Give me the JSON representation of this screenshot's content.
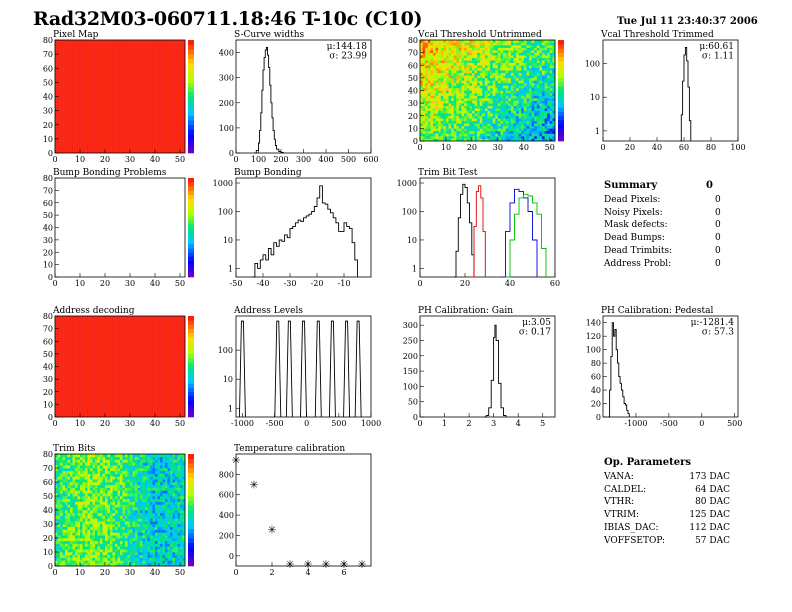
{
  "header": {
    "title": "Rad32M03-060711.18:46 T-10c (C10)",
    "datetime": "Tue Jul 11 23:40:37 2006"
  },
  "panels": [
    {
      "id": "pixel-map",
      "title": "Pixel Map"
    },
    {
      "id": "scurve-widths",
      "title": "S-Curve widths",
      "stats": [
        "μ:144.18",
        "σ: 23.99"
      ]
    },
    {
      "id": "vcal-untrimmed",
      "title": "Vcal Threshold Untrimmed"
    },
    {
      "id": "vcal-trimmed",
      "title": "Vcal Threshold Trimmed",
      "stats": [
        "μ:60.61",
        "σ: 1.11"
      ]
    },
    {
      "id": "bump-problems",
      "title": "Bump Bonding Problems"
    },
    {
      "id": "bump-bonding",
      "title": "Bump Bonding"
    },
    {
      "id": "trim-bit-test",
      "title": "Trim Bit Test"
    },
    {
      "id": "address-decoding",
      "title": "Address decoding"
    },
    {
      "id": "address-levels",
      "title": "Address Levels"
    },
    {
      "id": "ph-gain",
      "title": "PH Calibration: Gain",
      "stats": [
        "μ:3.05",
        "σ: 0.17"
      ]
    },
    {
      "id": "ph-pedestal",
      "title": "PH Calibration: Pedestal",
      "stats": [
        "μ:-1281.4",
        "σ: 57.3"
      ]
    },
    {
      "id": "trim-bits",
      "title": "Trim Bits"
    },
    {
      "id": "temp-calib",
      "title": "Temperature calibration"
    }
  ],
  "summary": {
    "title": "Summary",
    "total": "0",
    "rows": [
      {
        "label": "Dead Pixels:",
        "value": "0"
      },
      {
        "label": "Noisy Pixels:",
        "value": "0"
      },
      {
        "label": "Mask defects:",
        "value": "0"
      },
      {
        "label": "Dead Bumps:",
        "value": "0"
      },
      {
        "label": "Dead Trimbits:",
        "value": "0"
      },
      {
        "label": "Address Probl:",
        "value": "0"
      }
    ]
  },
  "op_params": {
    "title": "Op. Parameters",
    "rows": [
      {
        "label": "VANA:",
        "value": "173 DAC"
      },
      {
        "label": "CALDEL:",
        "value": "64 DAC"
      },
      {
        "label": "VTHR:",
        "value": "80 DAC"
      },
      {
        "label": "VTRIM:",
        "value": "125 DAC"
      },
      {
        "label": "IBIAS_DAC:",
        "value": "112 DAC"
      },
      {
        "label": "VOFFSETOP:",
        "value": "57 DAC"
      }
    ]
  },
  "colors": {
    "hot": "#ff2a14",
    "line": "#000000",
    "trim_black": "#000000",
    "trim_red": "#e00000",
    "trim_blue": "#0000dd",
    "trim_green": "#00c000"
  },
  "chart_data": [
    {
      "id": "pixel-map",
      "type": "heatmap",
      "xlim": [
        0,
        52
      ],
      "ylim": [
        0,
        80
      ],
      "xticks": [
        0,
        10,
        20,
        30,
        40,
        50
      ],
      "yticks": [
        0,
        10,
        20,
        30,
        40,
        50,
        60,
        70,
        80
      ],
      "fill": "uniform-max"
    },
    {
      "id": "scurve-widths",
      "type": "line",
      "xlim": [
        0,
        600
      ],
      "ylim": [
        0,
        450
      ],
      "xticks": [
        0,
        100,
        200,
        300,
        400,
        500,
        600
      ],
      "yticks": [
        0,
        100,
        200,
        300,
        400
      ],
      "x": [
        80,
        90,
        100,
        105,
        110,
        115,
        120,
        125,
        130,
        135,
        140,
        145,
        150,
        155,
        160,
        165,
        170,
        175,
        180,
        190,
        200,
        210
      ],
      "y": [
        0,
        10,
        40,
        90,
        160,
        250,
        330,
        380,
        410,
        420,
        390,
        340,
        270,
        200,
        140,
        90,
        55,
        30,
        15,
        6,
        2,
        0
      ]
    },
    {
      "id": "vcal-untrimmed",
      "type": "heatmap",
      "xlim": [
        0,
        52
      ],
      "ylim": [
        0,
        80
      ],
      "xticks": [
        0,
        10,
        20,
        30,
        40,
        50
      ],
      "yticks": [
        0,
        10,
        20,
        30,
        40,
        50,
        60,
        70,
        80
      ],
      "fill": "noisy-gradient"
    },
    {
      "id": "vcal-trimmed",
      "type": "line",
      "xlim": [
        0,
        100
      ],
      "log": true,
      "ylim": [
        0.5,
        500
      ],
      "xticks": [
        0,
        20,
        40,
        60,
        80,
        100
      ],
      "yticks": [
        1,
        10,
        100
      ],
      "x": [
        57,
        58,
        59,
        60,
        61,
        62,
        63,
        64,
        65
      ],
      "y": [
        0.5,
        3,
        30,
        180,
        300,
        120,
        20,
        2,
        0.5
      ]
    },
    {
      "id": "bump-problems",
      "type": "heatmap",
      "xlim": [
        0,
        52
      ],
      "ylim": [
        0,
        80
      ],
      "xticks": [
        0,
        10,
        20,
        30,
        40,
        50
      ],
      "yticks": [
        0,
        10,
        20,
        30,
        40,
        50,
        60,
        70,
        80
      ],
      "fill": "empty"
    },
    {
      "id": "bump-bonding",
      "type": "line",
      "xlim": [
        -50,
        0
      ],
      "log": true,
      "ylim": [
        0.5,
        1500
      ],
      "xticks": [
        -50,
        -40,
        -30,
        -20,
        -10
      ],
      "yticks": [
        1,
        10,
        100,
        1000
      ],
      "x": [
        -44,
        -43,
        -42,
        -41,
        -40,
        -39,
        -38,
        -37,
        -36,
        -35,
        -34,
        -33,
        -32,
        -31,
        -30,
        -29,
        -28,
        -27,
        -26,
        -25,
        -24,
        -23,
        -22,
        -21,
        -20,
        -19,
        -18,
        -17,
        -16,
        -15,
        -14,
        -13,
        -12,
        -11,
        -10,
        -9,
        -8,
        -7,
        -6,
        -5
      ],
      "y": [
        0.5,
        1.5,
        1,
        2,
        3,
        2,
        5,
        3,
        8,
        6,
        10,
        9,
        15,
        12,
        25,
        30,
        40,
        50,
        45,
        60,
        70,
        80,
        100,
        150,
        300,
        800,
        200,
        180,
        120,
        90,
        60,
        40,
        20,
        20,
        40,
        30,
        25,
        8,
        2,
        0.5
      ]
    },
    {
      "id": "trim-bit-test",
      "type": "line",
      "xlim": [
        0,
        60
      ],
      "log": true,
      "ylim": [
        0.5,
        1500
      ],
      "xticks": [
        0,
        20,
        40,
        60
      ],
      "yticks": [
        1,
        10,
        100,
        1000
      ],
      "series": [
        {
          "color": "trim_black",
          "x": [
            15,
            16,
            17,
            18,
            19,
            20,
            21,
            22,
            23,
            24
          ],
          "y": [
            0.5,
            4,
            60,
            400,
            900,
            700,
            200,
            40,
            3,
            0.5
          ]
        },
        {
          "color": "trim_red",
          "x": [
            23,
            24,
            25,
            26,
            27,
            28,
            29
          ],
          "y": [
            0.5,
            30,
            500,
            800,
            300,
            20,
            0.5
          ]
        },
        {
          "color": "trim_blue",
          "x": [
            36,
            38,
            40,
            42,
            44,
            46,
            48,
            50,
            52
          ],
          "y": [
            0.5,
            20,
            200,
            600,
            500,
            300,
            100,
            10,
            0.5
          ]
        },
        {
          "color": "trim_green",
          "x": [
            38,
            40,
            42,
            44,
            46,
            48,
            50,
            52,
            54,
            56
          ],
          "y": [
            0.5,
            10,
            80,
            300,
            400,
            350,
            200,
            80,
            5,
            0.5
          ]
        }
      ]
    },
    {
      "id": "address-decoding",
      "type": "heatmap",
      "xlim": [
        0,
        52
      ],
      "ylim": [
        0,
        80
      ],
      "xticks": [
        0,
        10,
        20,
        30,
        40,
        50
      ],
      "yticks": [
        0,
        10,
        20,
        30,
        40,
        50,
        60,
        70,
        80
      ],
      "fill": "uniform-max"
    },
    {
      "id": "address-levels",
      "type": "line",
      "xlim": [
        -1100,
        1000
      ],
      "log": true,
      "ylim": [
        0.5,
        1500
      ],
      "xticks": [
        -1000,
        -500,
        0,
        500,
        1000
      ],
      "yticks": [
        1,
        10,
        100
      ],
      "peaks": [
        -1000,
        -450,
        -270,
        -50,
        180,
        400,
        620,
        800
      ],
      "peak_height": 1000
    },
    {
      "id": "ph-gain",
      "type": "line",
      "xlim": [
        0,
        5.5
      ],
      "ylim": [
        0,
        330
      ],
      "xticks": [
        0,
        1,
        2,
        3,
        4,
        5
      ],
      "yticks": [
        0,
        50,
        100,
        150,
        200,
        250,
        300
      ],
      "x": [
        2.6,
        2.7,
        2.8,
        2.9,
        3.0,
        3.05,
        3.1,
        3.2,
        3.3,
        3.4,
        3.5
      ],
      "y": [
        0,
        5,
        30,
        120,
        260,
        300,
        250,
        110,
        30,
        5,
        0
      ]
    },
    {
      "id": "ph-pedestal",
      "type": "line",
      "xlim": [
        -1500,
        550
      ],
      "ylim": [
        0,
        150
      ],
      "xticks": [
        -1000,
        -500,
        0,
        500
      ],
      "yticks": [
        0,
        20,
        40,
        60,
        80,
        100,
        120,
        140
      ],
      "x": [
        -1420,
        -1400,
        -1380,
        -1360,
        -1340,
        -1320,
        -1300,
        -1280,
        -1260,
        -1240,
        -1220,
        -1200,
        -1180,
        -1160,
        -1140,
        -1120,
        -1100
      ],
      "y": [
        0,
        40,
        90,
        140,
        120,
        130,
        100,
        80,
        60,
        50,
        40,
        30,
        20,
        18,
        10,
        5,
        0
      ]
    },
    {
      "id": "trim-bits",
      "type": "heatmap",
      "xlim": [
        0,
        52
      ],
      "ylim": [
        0,
        80
      ],
      "xticks": [
        0,
        10,
        20,
        30,
        40,
        50
      ],
      "yticks": [
        0,
        10,
        20,
        30,
        40,
        50,
        60,
        70,
        80
      ],
      "fill": "trim-noise"
    },
    {
      "id": "temp-calib",
      "type": "scatter",
      "xlim": [
        0,
        7.5
      ],
      "ylim": [
        -100,
        1000
      ],
      "xticks": [
        0,
        2,
        4,
        6
      ],
      "yticks": [
        0,
        200,
        400,
        600,
        800
      ],
      "x": [
        0,
        1,
        2,
        3,
        4,
        5,
        6,
        7
      ],
      "y": [
        940,
        700,
        260,
        -80,
        -80,
        -80,
        -80,
        -80
      ]
    }
  ]
}
